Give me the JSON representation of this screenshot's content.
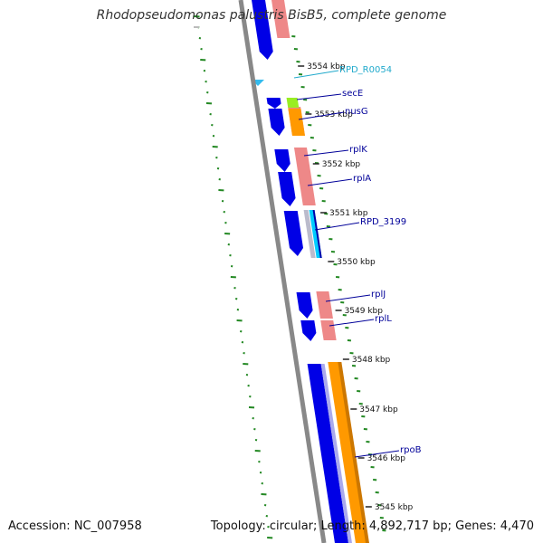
{
  "title": "Rhodopseudomonas palustris BisB5, complete genome",
  "footer": {
    "accession": "Accession: NC_007958",
    "summary": "Topology: circular; Length: 4,892,717 bp; Genes: 4,470"
  },
  "colors": {
    "cds": "#0000e6",
    "rna": "#33bbee",
    "backbone": "#888888",
    "cds_pale": "#ee8888",
    "orange": "#ff9900",
    "lime": "#99ee22",
    "cyan": "#00ccff",
    "gc_dots": "#228822",
    "label_dark": "#000099",
    "label_cyan": "#22aacc"
  },
  "ticks": [
    {
      "label": "3554 kbp"
    },
    {
      "label": "3553 kbp"
    },
    {
      "label": "3552 kbp"
    },
    {
      "label": "3551 kbp"
    },
    {
      "label": "3550 kbp"
    },
    {
      "label": "3549 kbp"
    },
    {
      "label": "3548 kbp"
    },
    {
      "label": "3547 kbp"
    },
    {
      "label": "3546 kbp"
    },
    {
      "label": "3545 kbp"
    }
  ],
  "gene_labels": [
    {
      "name": "RPD_R0054",
      "kind": "rna"
    },
    {
      "name": "secE",
      "kind": "cds"
    },
    {
      "name": "nusG",
      "kind": "cds"
    },
    {
      "name": "rplK",
      "kind": "cds"
    },
    {
      "name": "rplA",
      "kind": "cds"
    },
    {
      "name": "RPD_3199",
      "kind": "cds"
    },
    {
      "name": "rplJ",
      "kind": "cds"
    },
    {
      "name": "rplL",
      "kind": "cds"
    },
    {
      "name": "rpoB",
      "kind": "cds"
    }
  ]
}
